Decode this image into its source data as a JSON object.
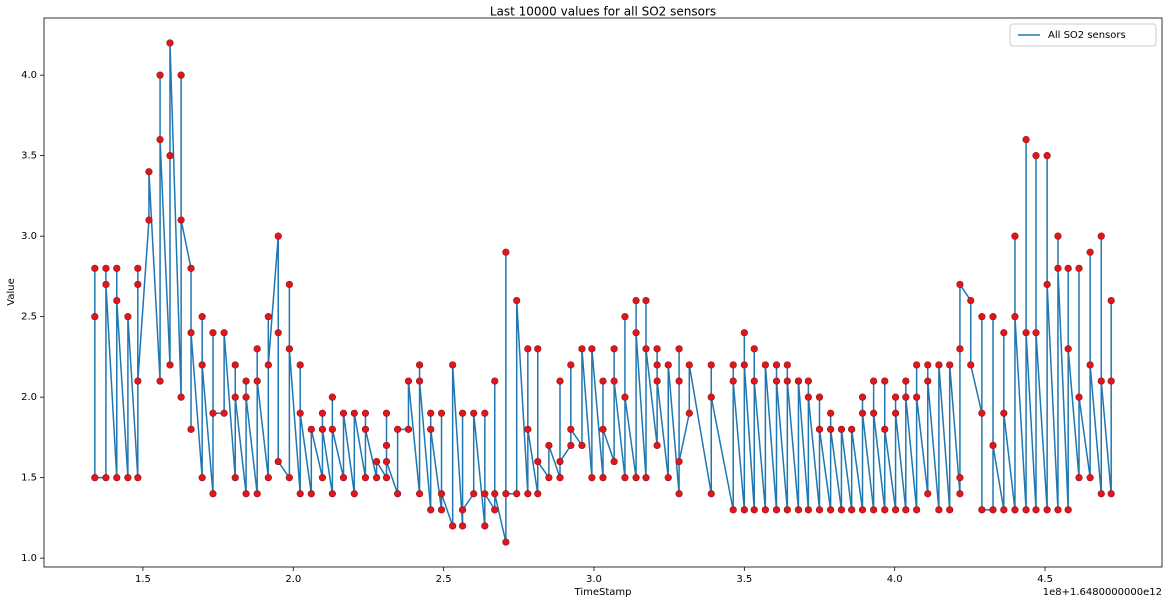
{
  "chart_data": {
    "type": "line",
    "title": "Last 10000 values for all SO2 sensors",
    "x_label": "TimeStamp",
    "y_label": "Value",
    "x_offset_text": "1e8+1.6480000000e12",
    "xlim": [
      1.171,
      4.889
    ],
    "ylim": [
      0.945,
      4.355
    ],
    "xticks": [
      {
        "value": 1.5,
        "label": "1.5"
      },
      {
        "value": 2.0,
        "label": "2.0"
      },
      {
        "value": 2.5,
        "label": "2.5"
      },
      {
        "value": 3.0,
        "label": "3.0"
      },
      {
        "value": 3.5,
        "label": "3.5"
      },
      {
        "value": 4.0,
        "label": "4.0"
      },
      {
        "value": 4.5,
        "label": "4.5"
      }
    ],
    "yticks": [
      {
        "value": 1.0,
        "label": "1.0"
      },
      {
        "value": 1.5,
        "label": "1.5"
      },
      {
        "value": 2.0,
        "label": "2.0"
      },
      {
        "value": 2.5,
        "label": "2.5"
      },
      {
        "value": 3.0,
        "label": "3.0"
      },
      {
        "value": 3.5,
        "label": "3.5"
      },
      {
        "value": 4.0,
        "label": "4.0"
      }
    ],
    "grid": false,
    "legend": "upper right",
    "marker_color": "#e3141c",
    "x": [
      1.34,
      1.34,
      1.34,
      1.377,
      1.377,
      1.377,
      1.413,
      1.413,
      1.413,
      1.45,
      1.45,
      1.483,
      1.483,
      1.483,
      1.483,
      1.52,
      1.52,
      1.557,
      1.557,
      1.557,
      1.59,
      1.59,
      1.59,
      1.627,
      1.627,
      1.627,
      1.66,
      1.66,
      1.66,
      1.697,
      1.697,
      1.697,
      1.733,
      1.733,
      1.733,
      1.77,
      1.77,
      1.807,
      1.807,
      1.807,
      1.843,
      1.843,
      1.843,
      1.88,
      1.88,
      1.88,
      1.917,
      1.917,
      1.917,
      1.95,
      1.95,
      1.95,
      1.987,
      1.987,
      1.987,
      2.023,
      2.023,
      2.023,
      2.06,
      2.06,
      2.097,
      2.097,
      2.097,
      2.13,
      2.13,
      2.13,
      2.167,
      2.167,
      2.203,
      2.203,
      2.24,
      2.24,
      2.24,
      2.277,
      2.277,
      2.31,
      2.31,
      2.31,
      2.31,
      2.347,
      2.347,
      2.383,
      2.383,
      2.42,
      2.42,
      2.42,
      2.457,
      2.457,
      2.457,
      2.493,
      2.493,
      2.493,
      2.53,
      2.53,
      2.563,
      2.563,
      2.563,
      2.6,
      2.6,
      2.637,
      2.637,
      2.637,
      2.67,
      2.67,
      2.67,
      2.707,
      2.707,
      2.707,
      2.743,
      2.743,
      2.78,
      2.78,
      2.78,
      2.813,
      2.813,
      2.813,
      2.85,
      2.85,
      2.887,
      2.887,
      2.887,
      2.923,
      2.923,
      2.923,
      2.96,
      2.96,
      2.993,
      2.993,
      3.03,
      3.03,
      3.03,
      3.067,
      3.067,
      3.067,
      3.103,
      3.103,
      3.103,
      3.14,
      3.14,
      3.14,
      3.173,
      3.173,
      3.173,
      3.21,
      3.21,
      3.21,
      3.21,
      3.247,
      3.247,
      3.283,
      3.283,
      3.283,
      3.283,
      3.317,
      3.317,
      3.39,
      3.39,
      3.39,
      3.463,
      3.463,
      3.463,
      3.5,
      3.5,
      3.5,
      3.533,
      3.533,
      3.533,
      3.57,
      3.57,
      3.607,
      3.607,
      3.607,
      3.643,
      3.643,
      3.643,
      3.68,
      3.68,
      3.68,
      3.713,
      3.713,
      3.713,
      3.75,
      3.75,
      3.75,
      3.787,
      3.787,
      3.787,
      3.823,
      3.823,
      3.857,
      3.857,
      3.893,
      3.893,
      3.893,
      3.93,
      3.93,
      3.93,
      3.967,
      3.967,
      3.967,
      4.003,
      4.003,
      4.003,
      4.037,
      4.037,
      4.037,
      4.073,
      4.073,
      4.073,
      4.11,
      4.11,
      4.11,
      4.147,
      4.147,
      4.183,
      4.183,
      4.217,
      4.217,
      4.217,
      4.217,
      4.253,
      4.253,
      4.29,
      4.29,
      4.29,
      4.327,
      4.327,
      4.327,
      4.363,
      4.363,
      4.363,
      4.4,
      4.4,
      4.4,
      4.437,
      4.437,
      4.437,
      4.47,
      4.47,
      4.47,
      4.507,
      4.507,
      4.507,
      4.543,
      4.543,
      4.543,
      4.577,
      4.577,
      4.577,
      4.613,
      4.613,
      4.613,
      4.65,
      4.65,
      4.65,
      4.687,
      4.687,
      4.687,
      4.72,
      4.72,
      4.72
    ],
    "series": [
      {
        "name": "All SO2 sensors",
        "color": "#1f77b4",
        "values": [
          2.8,
          2.5,
          1.5,
          1.5,
          2.8,
          2.7,
          1.5,
          2.8,
          2.6,
          1.5,
          2.5,
          1.5,
          2.8,
          2.7,
          2.1,
          3.1,
          3.4,
          2.1,
          4.0,
          3.6,
          2.2,
          3.5,
          4.2,
          2.0,
          4.0,
          3.1,
          2.8,
          1.8,
          2.4,
          1.5,
          2.5,
          2.2,
          1.4,
          2.4,
          1.9,
          1.9,
          2.4,
          1.5,
          2.2,
          2.0,
          1.4,
          2.1,
          2.0,
          1.4,
          2.3,
          2.1,
          1.5,
          2.5,
          2.2,
          3.0,
          2.4,
          1.6,
          1.5,
          2.7,
          2.3,
          1.4,
          2.2,
          1.9,
          1.4,
          1.8,
          1.5,
          1.9,
          1.8,
          1.4,
          2.0,
          1.8,
          1.5,
          1.9,
          1.4,
          1.9,
          1.5,
          1.9,
          1.8,
          1.5,
          1.6,
          1.5,
          1.9,
          1.7,
          1.6,
          1.4,
          1.8,
          1.8,
          2.1,
          1.4,
          2.2,
          2.1,
          1.3,
          1.9,
          1.8,
          1.3,
          1.9,
          1.4,
          1.2,
          2.2,
          1.2,
          1.9,
          1.3,
          1.4,
          1.9,
          1.2,
          1.9,
          1.4,
          1.3,
          2.1,
          1.4,
          1.1,
          2.9,
          1.4,
          1.4,
          2.6,
          1.4,
          2.3,
          1.8,
          1.4,
          2.3,
          1.6,
          1.5,
          1.7,
          1.5,
          2.1,
          1.6,
          1.7,
          2.2,
          1.8,
          1.7,
          2.3,
          1.5,
          2.3,
          1.5,
          2.1,
          1.8,
          1.6,
          2.3,
          2.1,
          1.5,
          2.5,
          2.0,
          1.5,
          2.6,
          2.4,
          1.5,
          2.6,
          2.3,
          1.7,
          2.3,
          2.2,
          2.1,
          1.5,
          2.2,
          1.4,
          2.3,
          2.1,
          1.6,
          1.9,
          2.2,
          1.4,
          2.2,
          2.0,
          1.3,
          2.2,
          2.1,
          1.3,
          2.4,
          2.2,
          1.3,
          2.3,
          2.1,
          1.3,
          2.2,
          1.3,
          2.2,
          2.1,
          1.3,
          2.2,
          2.1,
          1.3,
          2.1,
          2.1,
          1.3,
          2.1,
          2.0,
          1.3,
          2.0,
          1.8,
          1.3,
          1.9,
          1.8,
          1.3,
          1.8,
          1.3,
          1.8,
          1.3,
          2.0,
          1.9,
          1.3,
          2.1,
          1.9,
          1.3,
          2.1,
          1.8,
          1.3,
          2.0,
          1.9,
          1.3,
          2.1,
          2.0,
          1.3,
          2.2,
          2.0,
          1.4,
          2.2,
          2.1,
          1.3,
          2.2,
          1.3,
          2.2,
          1.4,
          2.3,
          1.5,
          2.7,
          2.6,
          2.2,
          1.9,
          2.5,
          1.3,
          1.3,
          2.5,
          1.7,
          1.3,
          2.4,
          1.9,
          1.3,
          3.0,
          2.5,
          1.3,
          3.6,
          2.4,
          1.3,
          3.5,
          2.4,
          1.3,
          3.5,
          2.7,
          1.3,
          3.0,
          2.8,
          1.3,
          2.8,
          2.3,
          1.5,
          2.8,
          2.0,
          1.5,
          2.9,
          2.2,
          1.4,
          3.0,
          2.1,
          1.4,
          2.6,
          2.1
        ]
      }
    ]
  }
}
